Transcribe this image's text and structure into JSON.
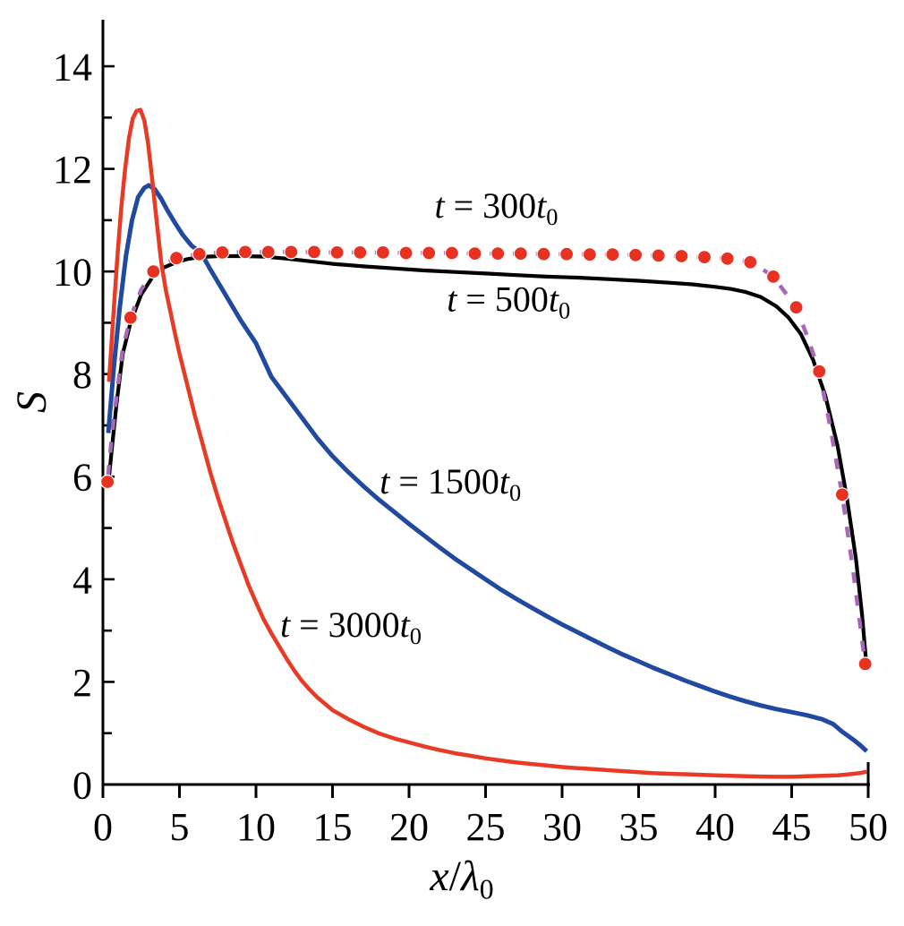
{
  "figure": {
    "background": "#ffffff",
    "axis_color": "#000000"
  },
  "chart_data": {
    "type": "line",
    "title": "",
    "xlabel": "x/λ0",
    "ylabel": "S",
    "xlabel_parts": [
      {
        "text": "x",
        "italic": true
      },
      {
        "text": "/",
        "italic": false
      },
      {
        "text": "λ",
        "italic": true
      },
      {
        "text": "0",
        "italic": false,
        "sub": true
      }
    ],
    "ylabel_parts": [
      {
        "text": "S",
        "italic": true
      }
    ],
    "xlim": [
      0,
      50
    ],
    "ylim": [
      0,
      15
    ],
    "grid": false,
    "legend_position": "inline-annotations",
    "x_ticks": [
      0,
      5,
      10,
      15,
      20,
      25,
      30,
      35,
      40,
      45,
      50
    ],
    "y_ticks": [
      1,
      2,
      3,
      4,
      5,
      6,
      7,
      8,
      9,
      10,
      11,
      12,
      13,
      14
    ],
    "y_tick_labels": [
      0,
      2,
      4,
      6,
      8,
      10,
      12,
      14
    ],
    "series": [
      {
        "id": "t500",
        "name": "t = 500t0",
        "color": "#000000",
        "width": 4.2,
        "dash": null,
        "points": [
          [
            0.35,
            5.85
          ],
          [
            0.6,
            6.6
          ],
          [
            0.9,
            7.45
          ],
          [
            1.3,
            8.4
          ],
          [
            1.8,
            9.0
          ],
          [
            2.5,
            9.55
          ],
          [
            3.3,
            9.92
          ],
          [
            4.0,
            10.08
          ],
          [
            4.8,
            10.18
          ],
          [
            5.5,
            10.24
          ],
          [
            6.3,
            10.28
          ],
          [
            7.5,
            10.3
          ],
          [
            9.0,
            10.3
          ],
          [
            10.5,
            10.29
          ],
          [
            12.0,
            10.25
          ],
          [
            13.5,
            10.2
          ],
          [
            15.0,
            10.15
          ],
          [
            17.0,
            10.1
          ],
          [
            19.0,
            10.06
          ],
          [
            21.0,
            10.02
          ],
          [
            23.0,
            9.99
          ],
          [
            25.0,
            9.96
          ],
          [
            27.0,
            9.93
          ],
          [
            29.0,
            9.9
          ],
          [
            31.0,
            9.88
          ],
          [
            33.0,
            9.85
          ],
          [
            35.0,
            9.82
          ],
          [
            37.0,
            9.78
          ],
          [
            38.5,
            9.75
          ],
          [
            40.0,
            9.7
          ],
          [
            41.0,
            9.66
          ],
          [
            42.0,
            9.6
          ],
          [
            43.0,
            9.5
          ],
          [
            44.0,
            9.32
          ],
          [
            44.8,
            9.1
          ],
          [
            45.6,
            8.78
          ],
          [
            46.4,
            8.28
          ],
          [
            47.2,
            7.58
          ],
          [
            48.0,
            6.6
          ],
          [
            48.6,
            5.6
          ],
          [
            49.2,
            4.4
          ],
          [
            49.6,
            3.3
          ],
          [
            49.85,
            2.45
          ]
        ]
      },
      {
        "id": "t300",
        "name": "t = 300t0",
        "color": "#a868b8",
        "width": 4.5,
        "dash": "12 13.7",
        "dash_offset": -7,
        "marker": "circle",
        "marker_color": "#e73222",
        "marker_radius": 7.5,
        "points": [
          [
            0.3,
            5.9
          ],
          [
            0.55,
            6.7
          ],
          [
            0.9,
            7.6
          ],
          [
            1.3,
            8.5
          ],
          [
            1.8,
            9.1
          ],
          [
            2.5,
            9.65
          ],
          [
            3.3,
            10.0
          ],
          [
            4.0,
            10.15
          ],
          [
            4.8,
            10.26
          ],
          [
            5.5,
            10.3
          ],
          [
            6.3,
            10.34
          ],
          [
            7.8,
            10.37
          ],
          [
            9.3,
            10.38
          ],
          [
            10.8,
            10.38
          ],
          [
            12.3,
            10.38
          ],
          [
            13.8,
            10.38
          ],
          [
            15.3,
            10.37
          ],
          [
            16.8,
            10.37
          ],
          [
            18.3,
            10.37
          ],
          [
            19.8,
            10.36
          ],
          [
            21.3,
            10.36
          ],
          [
            22.8,
            10.36
          ],
          [
            24.3,
            10.35
          ],
          [
            25.8,
            10.35
          ],
          [
            27.3,
            10.35
          ],
          [
            28.8,
            10.34
          ],
          [
            30.3,
            10.34
          ],
          [
            31.8,
            10.33
          ],
          [
            33.3,
            10.33
          ],
          [
            34.8,
            10.32
          ],
          [
            36.3,
            10.31
          ],
          [
            37.8,
            10.3
          ],
          [
            39.3,
            10.28
          ],
          [
            40.8,
            10.25
          ],
          [
            42.3,
            10.18
          ],
          [
            43.0,
            10.06
          ],
          [
            43.8,
            9.9
          ],
          [
            44.5,
            9.62
          ],
          [
            45.3,
            9.3
          ],
          [
            46.0,
            8.75
          ],
          [
            46.8,
            8.05
          ],
          [
            47.5,
            7.0
          ],
          [
            48.3,
            5.65
          ],
          [
            49.0,
            4.2
          ],
          [
            49.8,
            2.35
          ]
        ],
        "markers": [
          [
            0.3,
            5.9
          ],
          [
            1.8,
            9.1
          ],
          [
            3.3,
            10.0
          ],
          [
            4.8,
            10.26
          ],
          [
            6.3,
            10.34
          ],
          [
            7.8,
            10.37
          ],
          [
            9.3,
            10.38
          ],
          [
            10.8,
            10.38
          ],
          [
            12.3,
            10.38
          ],
          [
            13.8,
            10.38
          ],
          [
            15.3,
            10.37
          ],
          [
            16.8,
            10.37
          ],
          [
            18.3,
            10.37
          ],
          [
            19.8,
            10.36
          ],
          [
            21.3,
            10.36
          ],
          [
            22.8,
            10.36
          ],
          [
            24.3,
            10.35
          ],
          [
            25.8,
            10.35
          ],
          [
            27.3,
            10.35
          ],
          [
            28.8,
            10.34
          ],
          [
            30.3,
            10.34
          ],
          [
            31.8,
            10.33
          ],
          [
            33.3,
            10.33
          ],
          [
            34.8,
            10.32
          ],
          [
            36.3,
            10.31
          ],
          [
            37.8,
            10.3
          ],
          [
            39.3,
            10.28
          ],
          [
            40.8,
            10.25
          ],
          [
            42.3,
            10.18
          ],
          [
            43.8,
            9.9
          ],
          [
            45.3,
            9.3
          ],
          [
            46.8,
            8.05
          ],
          [
            48.3,
            5.65
          ],
          [
            49.8,
            2.35
          ]
        ]
      },
      {
        "id": "t1500",
        "name": "t = 1500t0",
        "color": "#2149a0",
        "width": 5,
        "dash": null,
        "points": [
          [
            0.35,
            6.85
          ],
          [
            0.7,
            8.1
          ],
          [
            1.1,
            9.3
          ],
          [
            1.5,
            10.3
          ],
          [
            1.9,
            11.0
          ],
          [
            2.3,
            11.45
          ],
          [
            2.7,
            11.63
          ],
          [
            3.0,
            11.68
          ],
          [
            3.4,
            11.6
          ],
          [
            3.8,
            11.42
          ],
          [
            4.2,
            11.2
          ],
          [
            4.7,
            10.95
          ],
          [
            5.2,
            10.72
          ],
          [
            5.8,
            10.5
          ],
          [
            6.4,
            10.37
          ],
          [
            7.0,
            10.05
          ],
          [
            8.0,
            9.55
          ],
          [
            9.0,
            9.05
          ],
          [
            10.0,
            8.6
          ],
          [
            11.0,
            7.95
          ],
          [
            12.0,
            7.55
          ],
          [
            13.0,
            7.15
          ],
          [
            14.0,
            6.75
          ],
          [
            15.0,
            6.4
          ],
          [
            16.0,
            6.1
          ],
          [
            17.0,
            5.82
          ],
          [
            18.0,
            5.56
          ],
          [
            19.0,
            5.32
          ],
          [
            20.0,
            5.08
          ],
          [
            21.0,
            4.85
          ],
          [
            22.0,
            4.62
          ],
          [
            23.0,
            4.4
          ],
          [
            24.0,
            4.2
          ],
          [
            25.0,
            4.0
          ],
          [
            26.0,
            3.8
          ],
          [
            27.0,
            3.62
          ],
          [
            28.0,
            3.45
          ],
          [
            29.0,
            3.28
          ],
          [
            30.0,
            3.12
          ],
          [
            31.0,
            2.97
          ],
          [
            32.0,
            2.82
          ],
          [
            33.0,
            2.67
          ],
          [
            34.0,
            2.53
          ],
          [
            35.0,
            2.4
          ],
          [
            36.0,
            2.27
          ],
          [
            37.0,
            2.15
          ],
          [
            38.0,
            2.03
          ],
          [
            39.0,
            1.92
          ],
          [
            40.0,
            1.81
          ],
          [
            41.0,
            1.71
          ],
          [
            42.0,
            1.62
          ],
          [
            43.0,
            1.54
          ],
          [
            44.0,
            1.47
          ],
          [
            45.0,
            1.41
          ],
          [
            46.0,
            1.35
          ],
          [
            47.0,
            1.27
          ],
          [
            47.7,
            1.18
          ],
          [
            48.3,
            1.03
          ],
          [
            49.0,
            0.88
          ],
          [
            49.5,
            0.76
          ],
          [
            49.9,
            0.65
          ]
        ]
      },
      {
        "id": "t3000",
        "name": "t = 3000t0",
        "color": "#e73b25",
        "width": 4.5,
        "dash": null,
        "points": [
          [
            0.4,
            7.85
          ],
          [
            0.65,
            9.0
          ],
          [
            0.95,
            10.3
          ],
          [
            1.2,
            11.25
          ],
          [
            1.45,
            12.0
          ],
          [
            1.7,
            12.6
          ],
          [
            1.95,
            12.98
          ],
          [
            2.2,
            13.13
          ],
          [
            2.45,
            13.15
          ],
          [
            2.7,
            12.95
          ],
          [
            2.95,
            12.5
          ],
          [
            3.2,
            11.85
          ],
          [
            3.5,
            11.0
          ],
          [
            3.8,
            10.2
          ],
          [
            4.1,
            9.65
          ],
          [
            4.3,
            9.37
          ],
          [
            4.7,
            8.8
          ],
          [
            5.0,
            8.4
          ],
          [
            5.5,
            7.8
          ],
          [
            6.0,
            7.2
          ],
          [
            6.5,
            6.65
          ],
          [
            7.0,
            6.1
          ],
          [
            7.5,
            5.6
          ],
          [
            8.0,
            5.15
          ],
          [
            8.5,
            4.7
          ],
          [
            9.0,
            4.3
          ],
          [
            9.5,
            3.9
          ],
          [
            10.0,
            3.55
          ],
          [
            10.5,
            3.22
          ],
          [
            11.0,
            2.95
          ],
          [
            11.5,
            2.7
          ],
          [
            12.0,
            2.45
          ],
          [
            12.5,
            2.22
          ],
          [
            13.0,
            2.02
          ],
          [
            13.5,
            1.85
          ],
          [
            14.0,
            1.7
          ],
          [
            15.0,
            1.45
          ],
          [
            16.0,
            1.28
          ],
          [
            17.0,
            1.13
          ],
          [
            18.0,
            1.0
          ],
          [
            19.0,
            0.9
          ],
          [
            20.0,
            0.82
          ],
          [
            21.0,
            0.74
          ],
          [
            22.0,
            0.67
          ],
          [
            23.0,
            0.61
          ],
          [
            24.0,
            0.56
          ],
          [
            25.0,
            0.51
          ],
          [
            26.0,
            0.47
          ],
          [
            27.0,
            0.43
          ],
          [
            28.0,
            0.4
          ],
          [
            29.0,
            0.37
          ],
          [
            30.0,
            0.34
          ],
          [
            31.0,
            0.32
          ],
          [
            32.0,
            0.3
          ],
          [
            33.0,
            0.28
          ],
          [
            34.0,
            0.26
          ],
          [
            35.0,
            0.24
          ],
          [
            36.0,
            0.22
          ],
          [
            37.0,
            0.21
          ],
          [
            38.0,
            0.2
          ],
          [
            39.0,
            0.19
          ],
          [
            40.0,
            0.18
          ],
          [
            41.0,
            0.17
          ],
          [
            42.0,
            0.16
          ],
          [
            43.0,
            0.155
          ],
          [
            44.0,
            0.15
          ],
          [
            45.0,
            0.15
          ],
          [
            46.0,
            0.16
          ],
          [
            47.0,
            0.17
          ],
          [
            48.0,
            0.18
          ],
          [
            48.8,
            0.2
          ],
          [
            49.4,
            0.22
          ],
          [
            49.9,
            0.25
          ]
        ]
      }
    ],
    "annotations": [
      {
        "id": "label-t300",
        "text": "t = 300t0",
        "x": 25.7,
        "y": 11.05,
        "parts": [
          {
            "text": "t",
            "italic": true
          },
          {
            "text": " = 300",
            "italic": false
          },
          {
            "text": "t",
            "italic": true
          },
          {
            "text": "0",
            "italic": false,
            "sub": true
          }
        ]
      },
      {
        "id": "label-t500",
        "text": "t = 500t0",
        "x": 26.5,
        "y": 9.23,
        "parts": [
          {
            "text": "t",
            "italic": true
          },
          {
            "text": " = 500",
            "italic": false
          },
          {
            "text": "t",
            "italic": true
          },
          {
            "text": "0",
            "italic": false,
            "sub": true
          }
        ]
      },
      {
        "id": "label-t1500",
        "text": "t = 1500t0",
        "x": 22.7,
        "y": 5.67,
        "parts": [
          {
            "text": "t",
            "italic": true
          },
          {
            "text": " = 1500",
            "italic": false
          },
          {
            "text": "t",
            "italic": true
          },
          {
            "text": "0",
            "italic": false,
            "sub": true
          }
        ]
      },
      {
        "id": "label-t3000",
        "text": "t = 3000t0",
        "x": 16.2,
        "y": 2.88,
        "parts": [
          {
            "text": "t",
            "italic": true
          },
          {
            "text": " = 3000",
            "italic": false
          },
          {
            "text": "t",
            "italic": true
          },
          {
            "text": "0",
            "italic": false,
            "sub": true
          }
        ]
      }
    ]
  }
}
